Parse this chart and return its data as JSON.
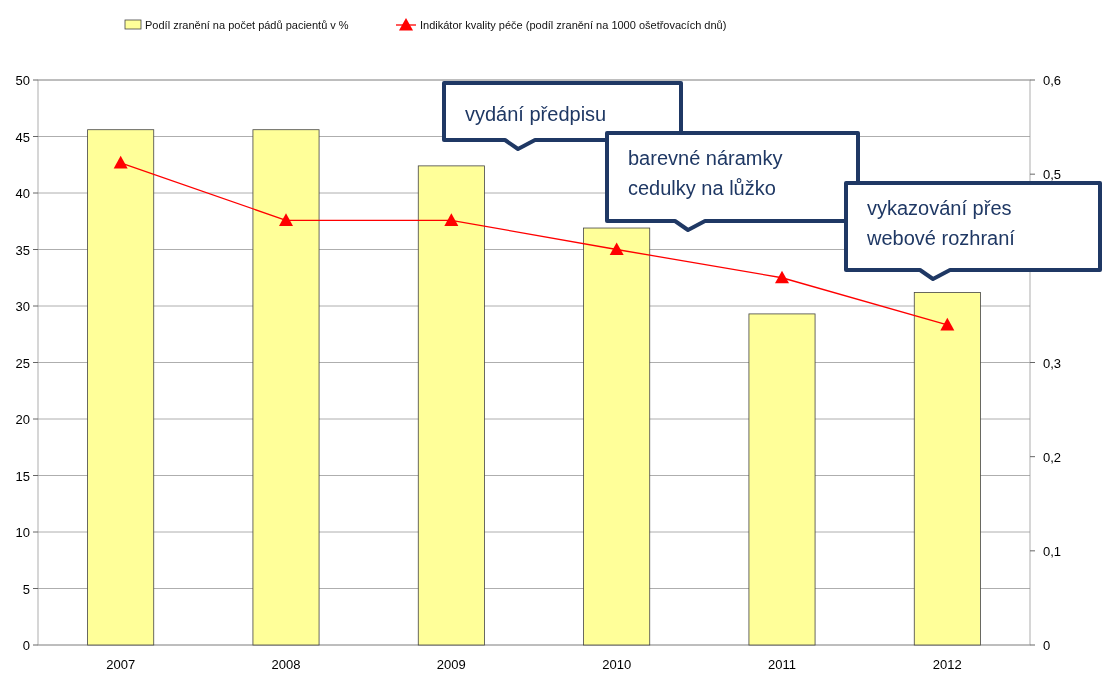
{
  "chart_data": {
    "type": "bar",
    "categories": [
      "2007",
      "2008",
      "2009",
      "2010",
      "2011",
      "2012"
    ],
    "series": [
      {
        "name": "Podíl zranění na počet pádů pacientů v %",
        "color": "#ffff99",
        "values": [
          45.6,
          45.6,
          42.4,
          36.9,
          29.3,
          31.2
        ]
      },
      {
        "name": "Indikátor kvality péče (podíl zranění na 1000 ošetřovacích dnů)",
        "type": "line",
        "axis": "y2",
        "color": "#ff0000",
        "values": [
          0.512,
          0.451,
          0.451,
          0.42,
          0.39,
          0.34
        ]
      }
    ],
    "ylim": [
      0,
      50
    ],
    "yticks": [
      0,
      5,
      10,
      15,
      20,
      25,
      30,
      35,
      40,
      45,
      50
    ],
    "y2lim": [
      0,
      0.6
    ],
    "y2ticks": [
      {
        "value": 0,
        "label": "0"
      },
      {
        "value": 0.1,
        "label": "0,1"
      },
      {
        "value": 0.2,
        "label": "0,2"
      },
      {
        "value": 0.3,
        "label": "0,3"
      },
      {
        "value": 0.4,
        "label": null
      },
      {
        "value": 0.5,
        "label": "0,5"
      },
      {
        "value": 0.6,
        "label": "0,6"
      }
    ],
    "grid": "y",
    "legend": "top",
    "marker": "triangle",
    "line_style": "solid",
    "annotations": [
      "vydání předpisu",
      "barevné náramky\ncedulky na lůžko",
      "vykazování přes\nwebové rozhraní"
    ]
  }
}
